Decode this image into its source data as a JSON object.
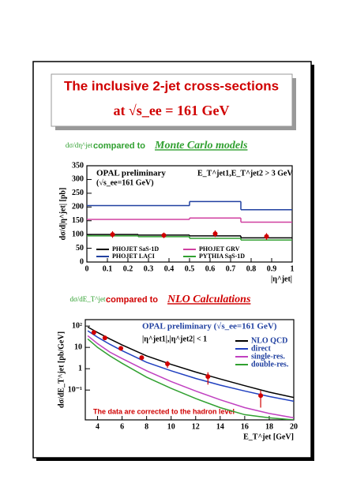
{
  "slide": {
    "title": "The inclusive 2-jet cross-sections",
    "subtitle": "at √s_ee = 161 GeV"
  },
  "sections": [
    {
      "formula": "dσ/dη^jet",
      "text": "compared to",
      "emph": "Monte Carlo models"
    },
    {
      "formula": "dσ/dE_T^jet",
      "text": "compared to",
      "emph": "NLO Calculations"
    }
  ],
  "chart_data": [
    {
      "type": "histogram",
      "title": "OPAL preliminary",
      "annotations": [
        "(√s_ee=161 GeV)",
        "E_T^jet1,E_T^jet2 > 3 GeV"
      ],
      "xlabel": "|η^jet|",
      "ylabel": "dσ/d|η^jet| [pb]",
      "bins": [
        0,
        0.25,
        0.5,
        0.75,
        1
      ],
      "series": [
        {
          "name": "PHOJET SaS-1D",
          "color": "#000000",
          "values": [
            100,
            98,
            95,
            88
          ]
        },
        {
          "name": "PHOJET LACI",
          "color": "#2040a0",
          "values": [
            205,
            205,
            220,
            190
          ]
        },
        {
          "name": "PHOJET GRV",
          "color": "#d040a0",
          "values": [
            155,
            155,
            160,
            145
          ]
        },
        {
          "name": "PYTHIA SaS-1D",
          "color": "#30a030",
          "values": [
            95,
            92,
            86,
            80
          ]
        }
      ],
      "points": {
        "x": [
          0.125,
          0.375,
          0.625,
          0.875
        ],
        "values": [
          100,
          97,
          103,
          93
        ],
        "errors": [
          12,
          10,
          12,
          12
        ],
        "color": "#d00000"
      },
      "xlim": [
        0,
        1
      ],
      "ylim": [
        0,
        350
      ],
      "xticks": [
        0,
        0.1,
        0.2,
        0.3,
        0.4,
        0.5,
        0.6,
        0.7,
        0.8,
        0.9,
        1
      ],
      "yticks": [
        0,
        50,
        100,
        150,
        200,
        250,
        300,
        350
      ]
    },
    {
      "type": "line",
      "title": "OPAL preliminary (√s_ee=161 GeV)",
      "annotations": [
        "|η^jet1|,|η^jet2| < 1",
        "The data are corrected to the hadron level"
      ],
      "xlabel": "E_T^jet [GeV]",
      "ylabel": "dσ/dE_T^jet [pb/GeV]",
      "x": [
        3.2,
        4,
        5,
        6,
        8,
        10,
        12,
        14,
        16,
        18,
        20
      ],
      "series": [
        {
          "name": "NLO QCD",
          "color": "#000000",
          "values": [
            90,
            50,
            25,
            13,
            4,
            1.6,
            0.7,
            0.33,
            0.16,
            0.08,
            0.045
          ]
        },
        {
          "name": "direct",
          "color": "#2040c0",
          "values": [
            60,
            30,
            14,
            7,
            2,
            0.8,
            0.35,
            0.17,
            0.09,
            0.05,
            0.03
          ]
        },
        {
          "name": "single-res.",
          "color": "#c040c0",
          "values": [
            35,
            15,
            6,
            3,
            0.8,
            0.25,
            0.09,
            0.035,
            0.015,
            0.008,
            0.005
          ]
        },
        {
          "name": "double-res.",
          "color": "#30a030",
          "values": [
            25,
            10,
            4,
            1.8,
            0.4,
            0.12,
            0.04,
            0.015,
            0.007,
            0.005,
            0.004
          ]
        }
      ],
      "points": {
        "x": [
          3.7,
          4.6,
          5.9,
          7.6,
          9.7,
          13,
          17.3
        ],
        "values": [
          50,
          28,
          9,
          3.3,
          1.7,
          0.43,
          0.055
        ],
        "errors": [
          10,
          5,
          2,
          0.8,
          0.6,
          0.25,
          0.04
        ],
        "color": "#d00000"
      },
      "xlim": [
        3,
        20
      ],
      "ylim": [
        0.004,
        200
      ],
      "log_y": true,
      "xticks": [
        4,
        6,
        8,
        10,
        12,
        14,
        16,
        18,
        20
      ],
      "yticks": [
        {
          "value": 0.1,
          "label": "10⁻¹"
        },
        1,
        10,
        {
          "value": 100,
          "label": "10²"
        }
      ]
    }
  ]
}
